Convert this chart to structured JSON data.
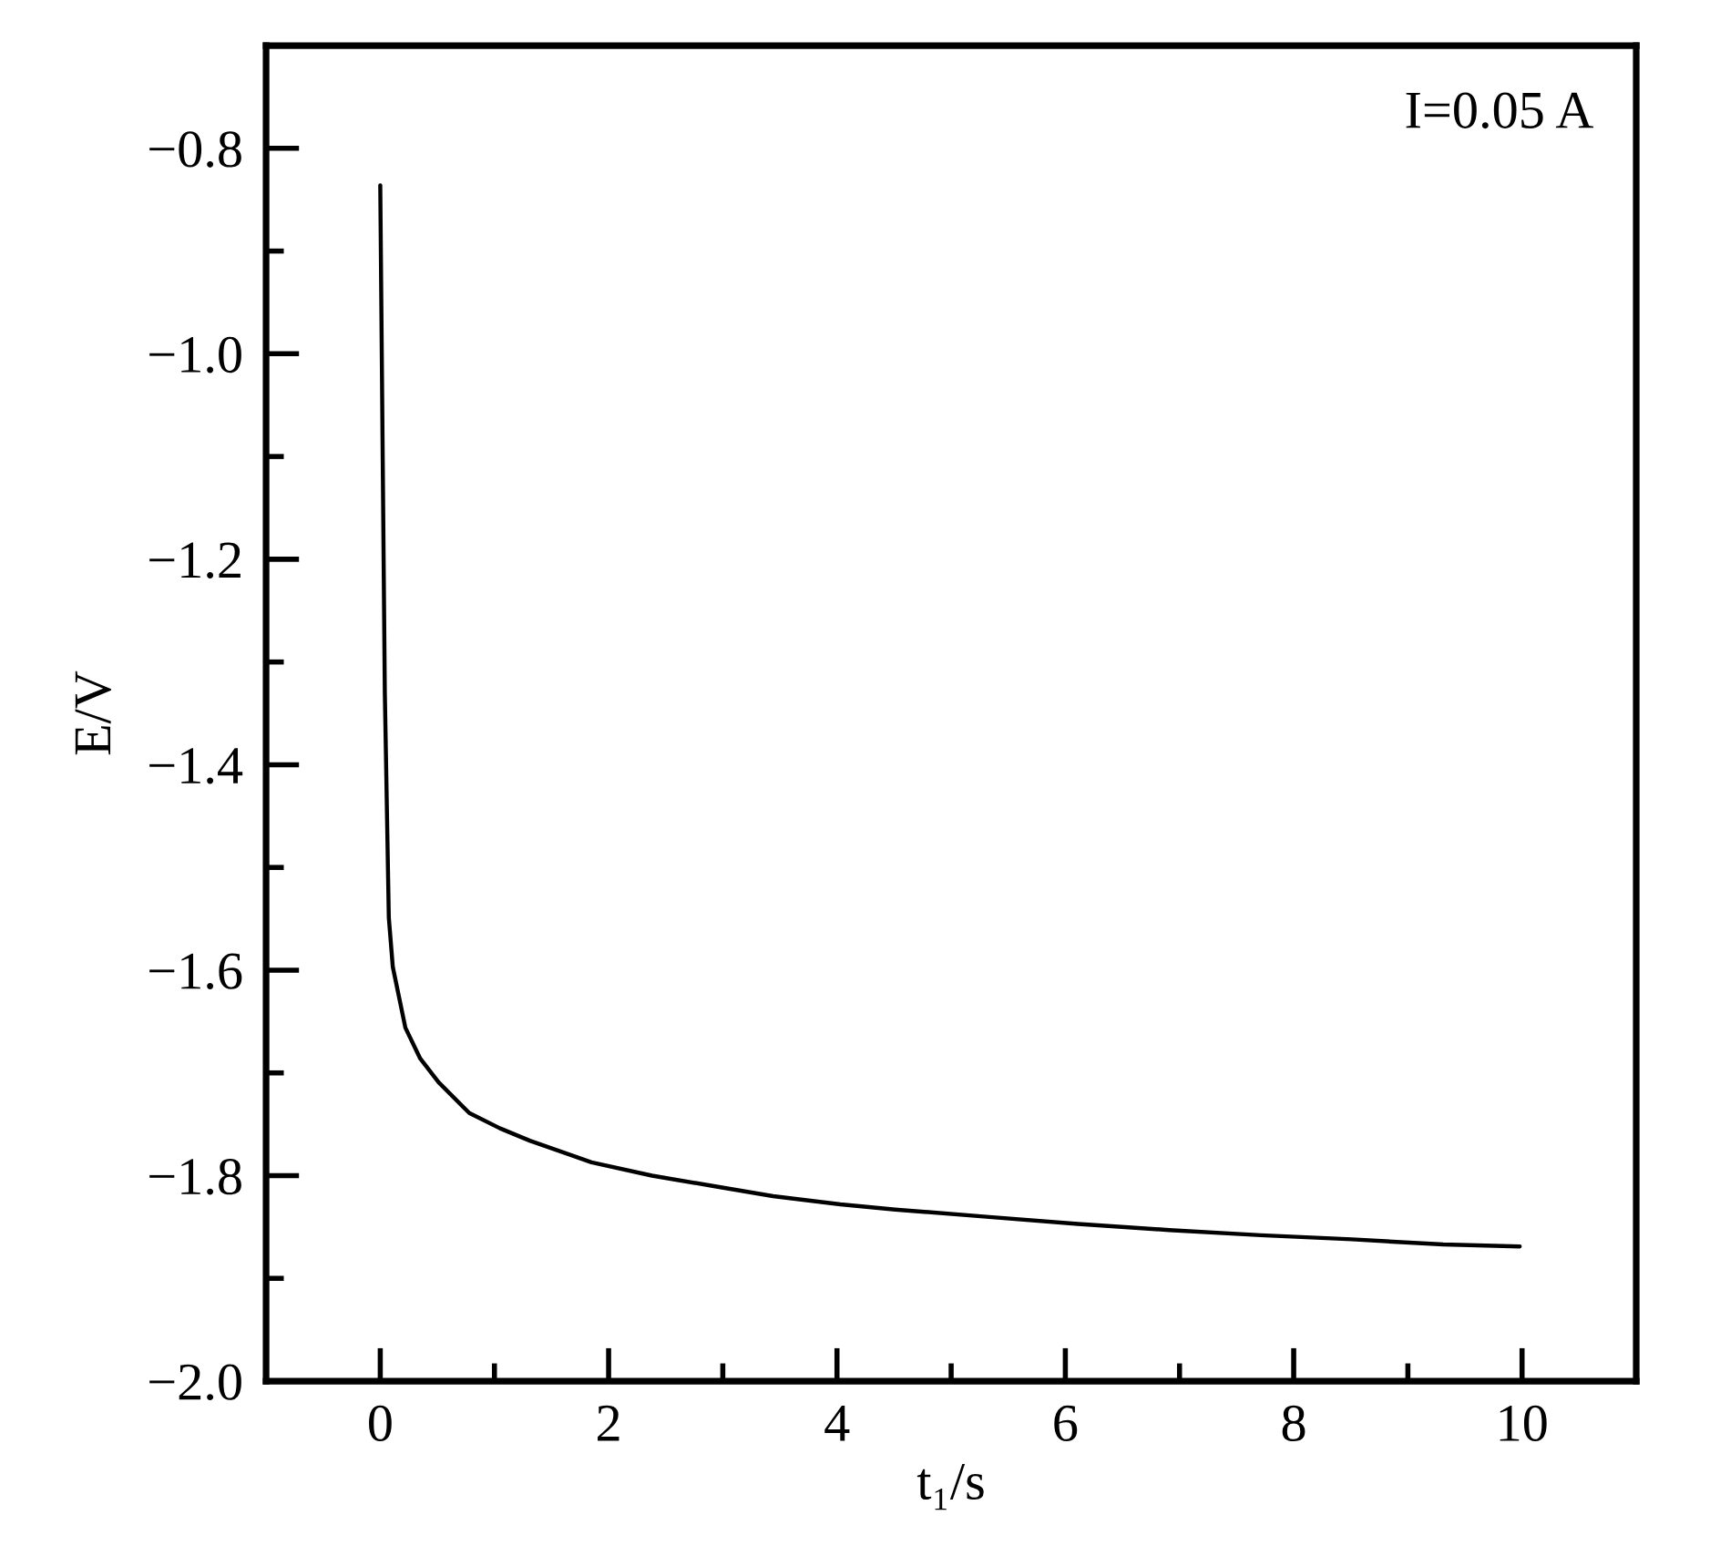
{
  "chart_data": {
    "type": "line",
    "xlabel": "t₁/s",
    "ylabel": "E/V",
    "annotations": [
      "I=0.05 A"
    ],
    "x": [
      0,
      0.04,
      0.075,
      0.11,
      0.22,
      0.35,
      0.51,
      0.78,
      1.05,
      1.31,
      1.85,
      2.38,
      2.91,
      3.44,
      4.03,
      4.51,
      5.31,
      6.11,
      6.91,
      7.71,
      8.51,
      9.31,
      9.98
    ],
    "series": [
      {
        "color": "#000000",
        "values": [
          -0.836,
          -1.33,
          -1.549,
          -1.597,
          -1.656,
          -1.686,
          -1.709,
          -1.739,
          -1.754,
          -1.766,
          -1.787,
          -1.8,
          -1.81,
          -1.82,
          -1.828,
          -1.833,
          -1.84,
          -1.847,
          -1.853,
          -1.858,
          -1.862,
          -1.867,
          -1.869
        ]
      }
    ],
    "xlim": [
      -1,
      11
    ],
    "ylim": [
      -2.0,
      -0.7
    ],
    "xticks": [
      0,
      {
        "value": 1,
        "label": null
      },
      2,
      {
        "value": 3,
        "label": null
      },
      4,
      {
        "value": 5,
        "label": null
      },
      6,
      {
        "value": 7,
        "label": null
      },
      8,
      {
        "value": 9,
        "label": null
      },
      10
    ],
    "yticks": [
      {
        "value": -2.0,
        "label": "−2.0"
      },
      {
        "value": -1.9,
        "label": null
      },
      {
        "value": -1.8,
        "label": "−1.8"
      },
      {
        "value": -1.7,
        "label": null
      },
      {
        "value": -1.6,
        "label": "−1.6"
      },
      {
        "value": -1.5,
        "label": null
      },
      {
        "value": -1.4,
        "label": "−1.4"
      },
      {
        "value": -1.3,
        "label": null
      },
      {
        "value": -1.2,
        "label": "−1.2"
      },
      {
        "value": -1.1,
        "label": null
      },
      {
        "value": -1.0,
        "label": "−1.0"
      },
      {
        "value": -0.9,
        "label": null
      },
      {
        "value": -0.8,
        "label": "−0.8"
      }
    ],
    "grid": false,
    "legend": false,
    "marker": "none",
    "line_style": "solid"
  }
}
